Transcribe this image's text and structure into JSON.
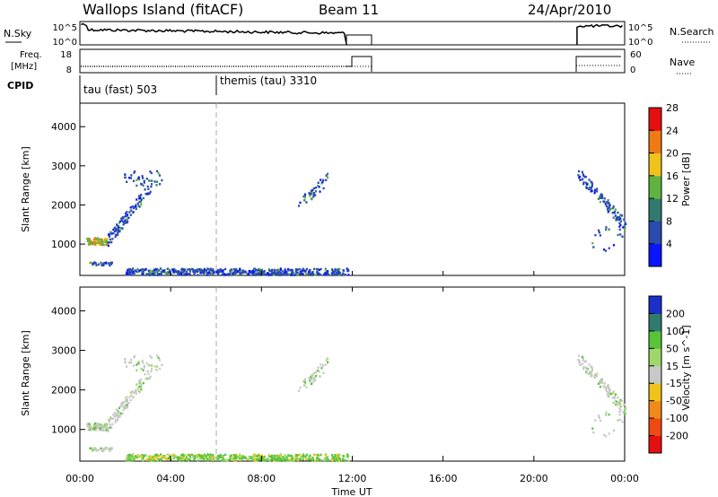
{
  "header": {
    "station": "Wallops Island (fitACF)",
    "beam": "Beam 11",
    "date": "24/Apr/2010"
  },
  "top_panels": {
    "nsky_label": "N.Sky",
    "nsky_ticks": [
      "10^5",
      "10^0"
    ],
    "nsearch_label": "N.Search",
    "nsearch_ticks": [
      "10^5",
      "10^0"
    ],
    "freq_label_1": "Freq.",
    "freq_label_2": "[MHz]",
    "freq_ticks": [
      "18",
      "8"
    ],
    "nave_label": "Nave",
    "nave_ticks": [
      "60",
      "0"
    ],
    "cpid_label": "CPID",
    "cpid_entries": [
      {
        "name": "tau (fast) 503",
        "start_hour": 0
      },
      {
        "name": "themis (tau) 3310",
        "start_hour": 6
      }
    ]
  },
  "time_axis": {
    "label": "Time UT",
    "ticks": [
      "00:00",
      "04:00",
      "08:00",
      "12:00",
      "16:00",
      "20:00",
      "00:00"
    ],
    "range_hours": [
      0,
      24
    ]
  },
  "chart_data": [
    {
      "type": "heatmap",
      "name": "power",
      "ylabel": "Slant Range [km]",
      "yticks": [
        "1000",
        "2000",
        "3000",
        "4000"
      ],
      "ylim": [
        200,
        4600
      ],
      "colorbar_label": "Power [dB]",
      "colorbar_ticks": [
        "4",
        "8",
        "12",
        "16",
        "20",
        "24",
        "28"
      ],
      "colorbar_range": [
        0,
        32
      ],
      "colorbar_colors": [
        "#0a14ff",
        "#2a4aae",
        "#2f7c6e",
        "#5fb441",
        "#f0c21a",
        "#f07a14",
        "#e60f0f"
      ],
      "scatter_regions": [
        {
          "t0": 0.25,
          "t1": 1.2,
          "r0": 1000,
          "r1": 1180,
          "density": 0.95
        },
        {
          "t0": 1.2,
          "t1": 3.1,
          "r0": 1100,
          "r1": 2500,
          "density": 0.6,
          "slope": true
        },
        {
          "t0": 1.9,
          "t1": 3.6,
          "r0": 2500,
          "r1": 2900,
          "density": 0.25
        },
        {
          "t0": 0.4,
          "t1": 1.4,
          "r0": 480,
          "r1": 560,
          "density": 0.35
        },
        {
          "t0": 2.0,
          "t1": 11.8,
          "r0": 230,
          "r1": 400,
          "density": 0.55
        },
        {
          "t0": 9.6,
          "t1": 10.9,
          "r0": 2000,
          "r1": 2700,
          "density": 0.35,
          "slope": true
        },
        {
          "t0": 21.9,
          "t1": 24.0,
          "r0": 1500,
          "r1": 2850,
          "density": 0.55,
          "slope": true
        },
        {
          "t0": 22.5,
          "t1": 23.9,
          "r0": 800,
          "r1": 1500,
          "density": 0.15
        }
      ]
    },
    {
      "type": "heatmap",
      "name": "velocity",
      "ylabel": "Slant Range [km]",
      "yticks": [
        "1000",
        "2000",
        "3000",
        "4000"
      ],
      "ylim": [
        200,
        4600
      ],
      "colorbar_label": "Velocity [m s^-1]",
      "colorbar_ticks": [
        "200",
        "100",
        "50",
        "15",
        "-15",
        "-50",
        "-100",
        "-200"
      ],
      "colorbar_colors": [
        "#1a30c8",
        "#2f7c6e",
        "#58c43a",
        "#9fd86a",
        "#c8c8c8",
        "#f0c21a",
        "#f08a1a",
        "#f04a14",
        "#e60f0f"
      ],
      "scatter_regions": [
        {
          "t0": 0.25,
          "t1": 1.2,
          "r0": 1000,
          "r1": 1180,
          "density": 0.95
        },
        {
          "t0": 1.2,
          "t1": 3.1,
          "r0": 1100,
          "r1": 2500,
          "density": 0.6,
          "slope": true
        },
        {
          "t0": 1.9,
          "t1": 3.6,
          "r0": 2500,
          "r1": 2900,
          "density": 0.25
        },
        {
          "t0": 0.4,
          "t1": 1.4,
          "r0": 480,
          "r1": 560,
          "density": 0.35
        },
        {
          "t0": 2.0,
          "t1": 11.8,
          "r0": 230,
          "r1": 400,
          "density": 0.55
        },
        {
          "t0": 9.6,
          "t1": 10.9,
          "r0": 2000,
          "r1": 2700,
          "density": 0.35,
          "slope": true
        },
        {
          "t0": 21.9,
          "t1": 24.0,
          "r0": 1500,
          "r1": 2850,
          "density": 0.55,
          "slope": true
        },
        {
          "t0": 22.5,
          "t1": 23.9,
          "r0": 800,
          "r1": 1500,
          "density": 0.15
        }
      ]
    }
  ]
}
